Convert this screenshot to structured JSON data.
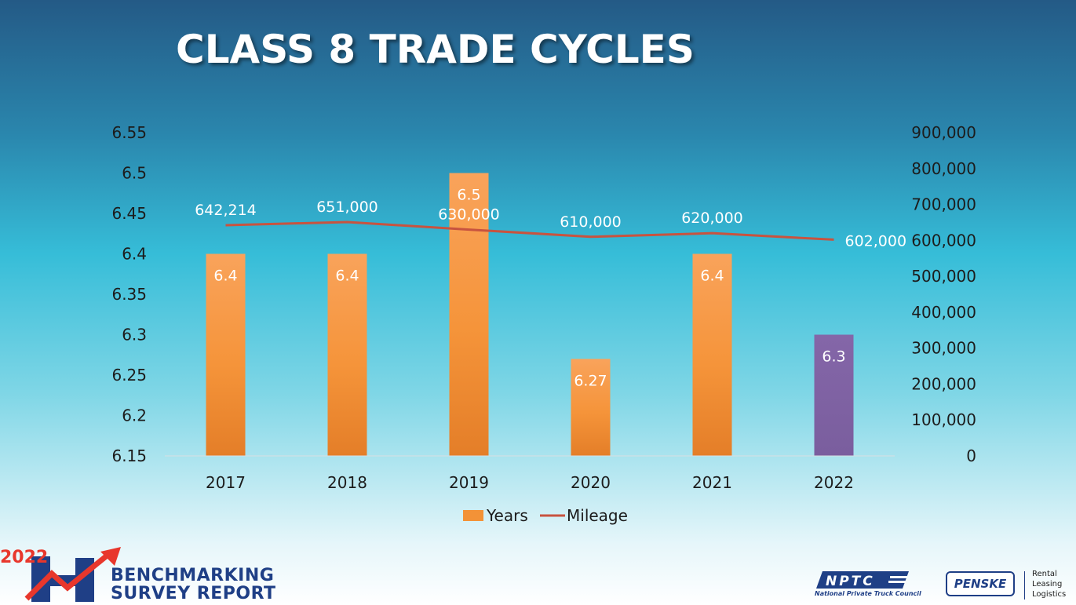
{
  "page": {
    "title": "CLASS 8 TRADE CYCLES"
  },
  "chart_data": {
    "type": "bar",
    "categories": [
      "2017",
      "2018",
      "2019",
      "2020",
      "2021",
      "2022"
    ],
    "series": [
      {
        "name": "Years",
        "chart": "bar",
        "axis": "left",
        "values": [
          6.4,
          6.4,
          6.5,
          6.27,
          6.4,
          6.3
        ],
        "labels": [
          "6.4",
          "6.4",
          "6.5",
          "6.27",
          "6.4",
          "6.3"
        ],
        "color": "#f39237"
      },
      {
        "name": "Mileage",
        "chart": "line",
        "axis": "right",
        "values": [
          642214,
          651000,
          630000,
          610000,
          620000,
          602000
        ],
        "labels": [
          "642,214",
          "651,000",
          "630,000",
          "610,000",
          "620,000",
          "602,000"
        ],
        "color": "#c8533f"
      }
    ],
    "highlight": {
      "category": "2022",
      "color": "#7f62a2"
    },
    "y_left": {
      "min": 6.15,
      "max": 6.55,
      "ticks": [
        "6.15",
        "6.2",
        "6.25",
        "6.3",
        "6.35",
        "6.4",
        "6.45",
        "6.5",
        "6.55"
      ]
    },
    "y_right": {
      "min": 0,
      "max": 900000,
      "ticks": [
        "0",
        "100,000",
        "200,000",
        "300,000",
        "400,000",
        "500,000",
        "600,000",
        "700,000",
        "800,000",
        "900,000"
      ]
    },
    "legend": {
      "position": "bottom",
      "items": [
        "Years",
        "Mileage"
      ]
    },
    "grid": false
  },
  "branding": {
    "report_year": "2022",
    "report_line1": "BENCHMARKING",
    "report_line2": "SURVEY REPORT",
    "nptc_logo": "NPTC",
    "nptc_name": "National Private Truck Council",
    "penske_logo": "PENSKE",
    "penske_tagline": [
      "Rental",
      "Leasing",
      "Logistics"
    ]
  }
}
